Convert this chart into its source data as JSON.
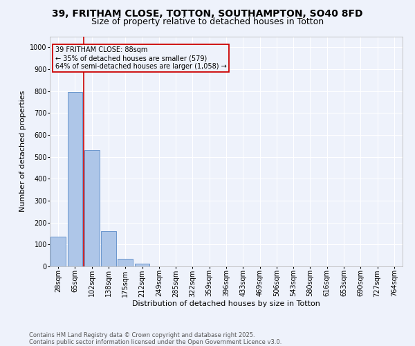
{
  "title_line1": "39, FRITHAM CLOSE, TOTTON, SOUTHAMPTON, SO40 8FD",
  "title_line2": "Size of property relative to detached houses in Totton",
  "xlabel": "Distribution of detached houses by size in Totton",
  "ylabel": "Number of detached properties",
  "bar_color": "#aec6e8",
  "bar_edge_color": "#5b8cc8",
  "background_color": "#eef2fb",
  "grid_color": "#ffffff",
  "annotation_box_color": "#cc0000",
  "vline_color": "#cc0000",
  "categories": [
    "28sqm",
    "65sqm",
    "102sqm",
    "138sqm",
    "175sqm",
    "212sqm",
    "249sqm",
    "285sqm",
    "322sqm",
    "359sqm",
    "396sqm",
    "433sqm",
    "469sqm",
    "506sqm",
    "543sqm",
    "580sqm",
    "616sqm",
    "653sqm",
    "690sqm",
    "727sqm",
    "764sqm"
  ],
  "values": [
    135,
    795,
    530,
    160,
    35,
    12,
    0,
    0,
    0,
    0,
    0,
    0,
    0,
    0,
    0,
    0,
    0,
    0,
    0,
    0,
    0
  ],
  "vline_pos": 1.5,
  "annotation_text": "39 FRITHAM CLOSE: 88sqm\n← 35% of detached houses are smaller (579)\n64% of semi-detached houses are larger (1,058) →",
  "ylim": [
    0,
    1050
  ],
  "yticks": [
    0,
    100,
    200,
    300,
    400,
    500,
    600,
    700,
    800,
    900,
    1000
  ],
  "footnote": "Contains HM Land Registry data © Crown copyright and database right 2025.\nContains public sector information licensed under the Open Government Licence v3.0.",
  "title_fontsize": 10,
  "subtitle_fontsize": 9,
  "label_fontsize": 8,
  "tick_fontsize": 7,
  "footnote_fontsize": 6,
  "annot_fontsize": 7
}
